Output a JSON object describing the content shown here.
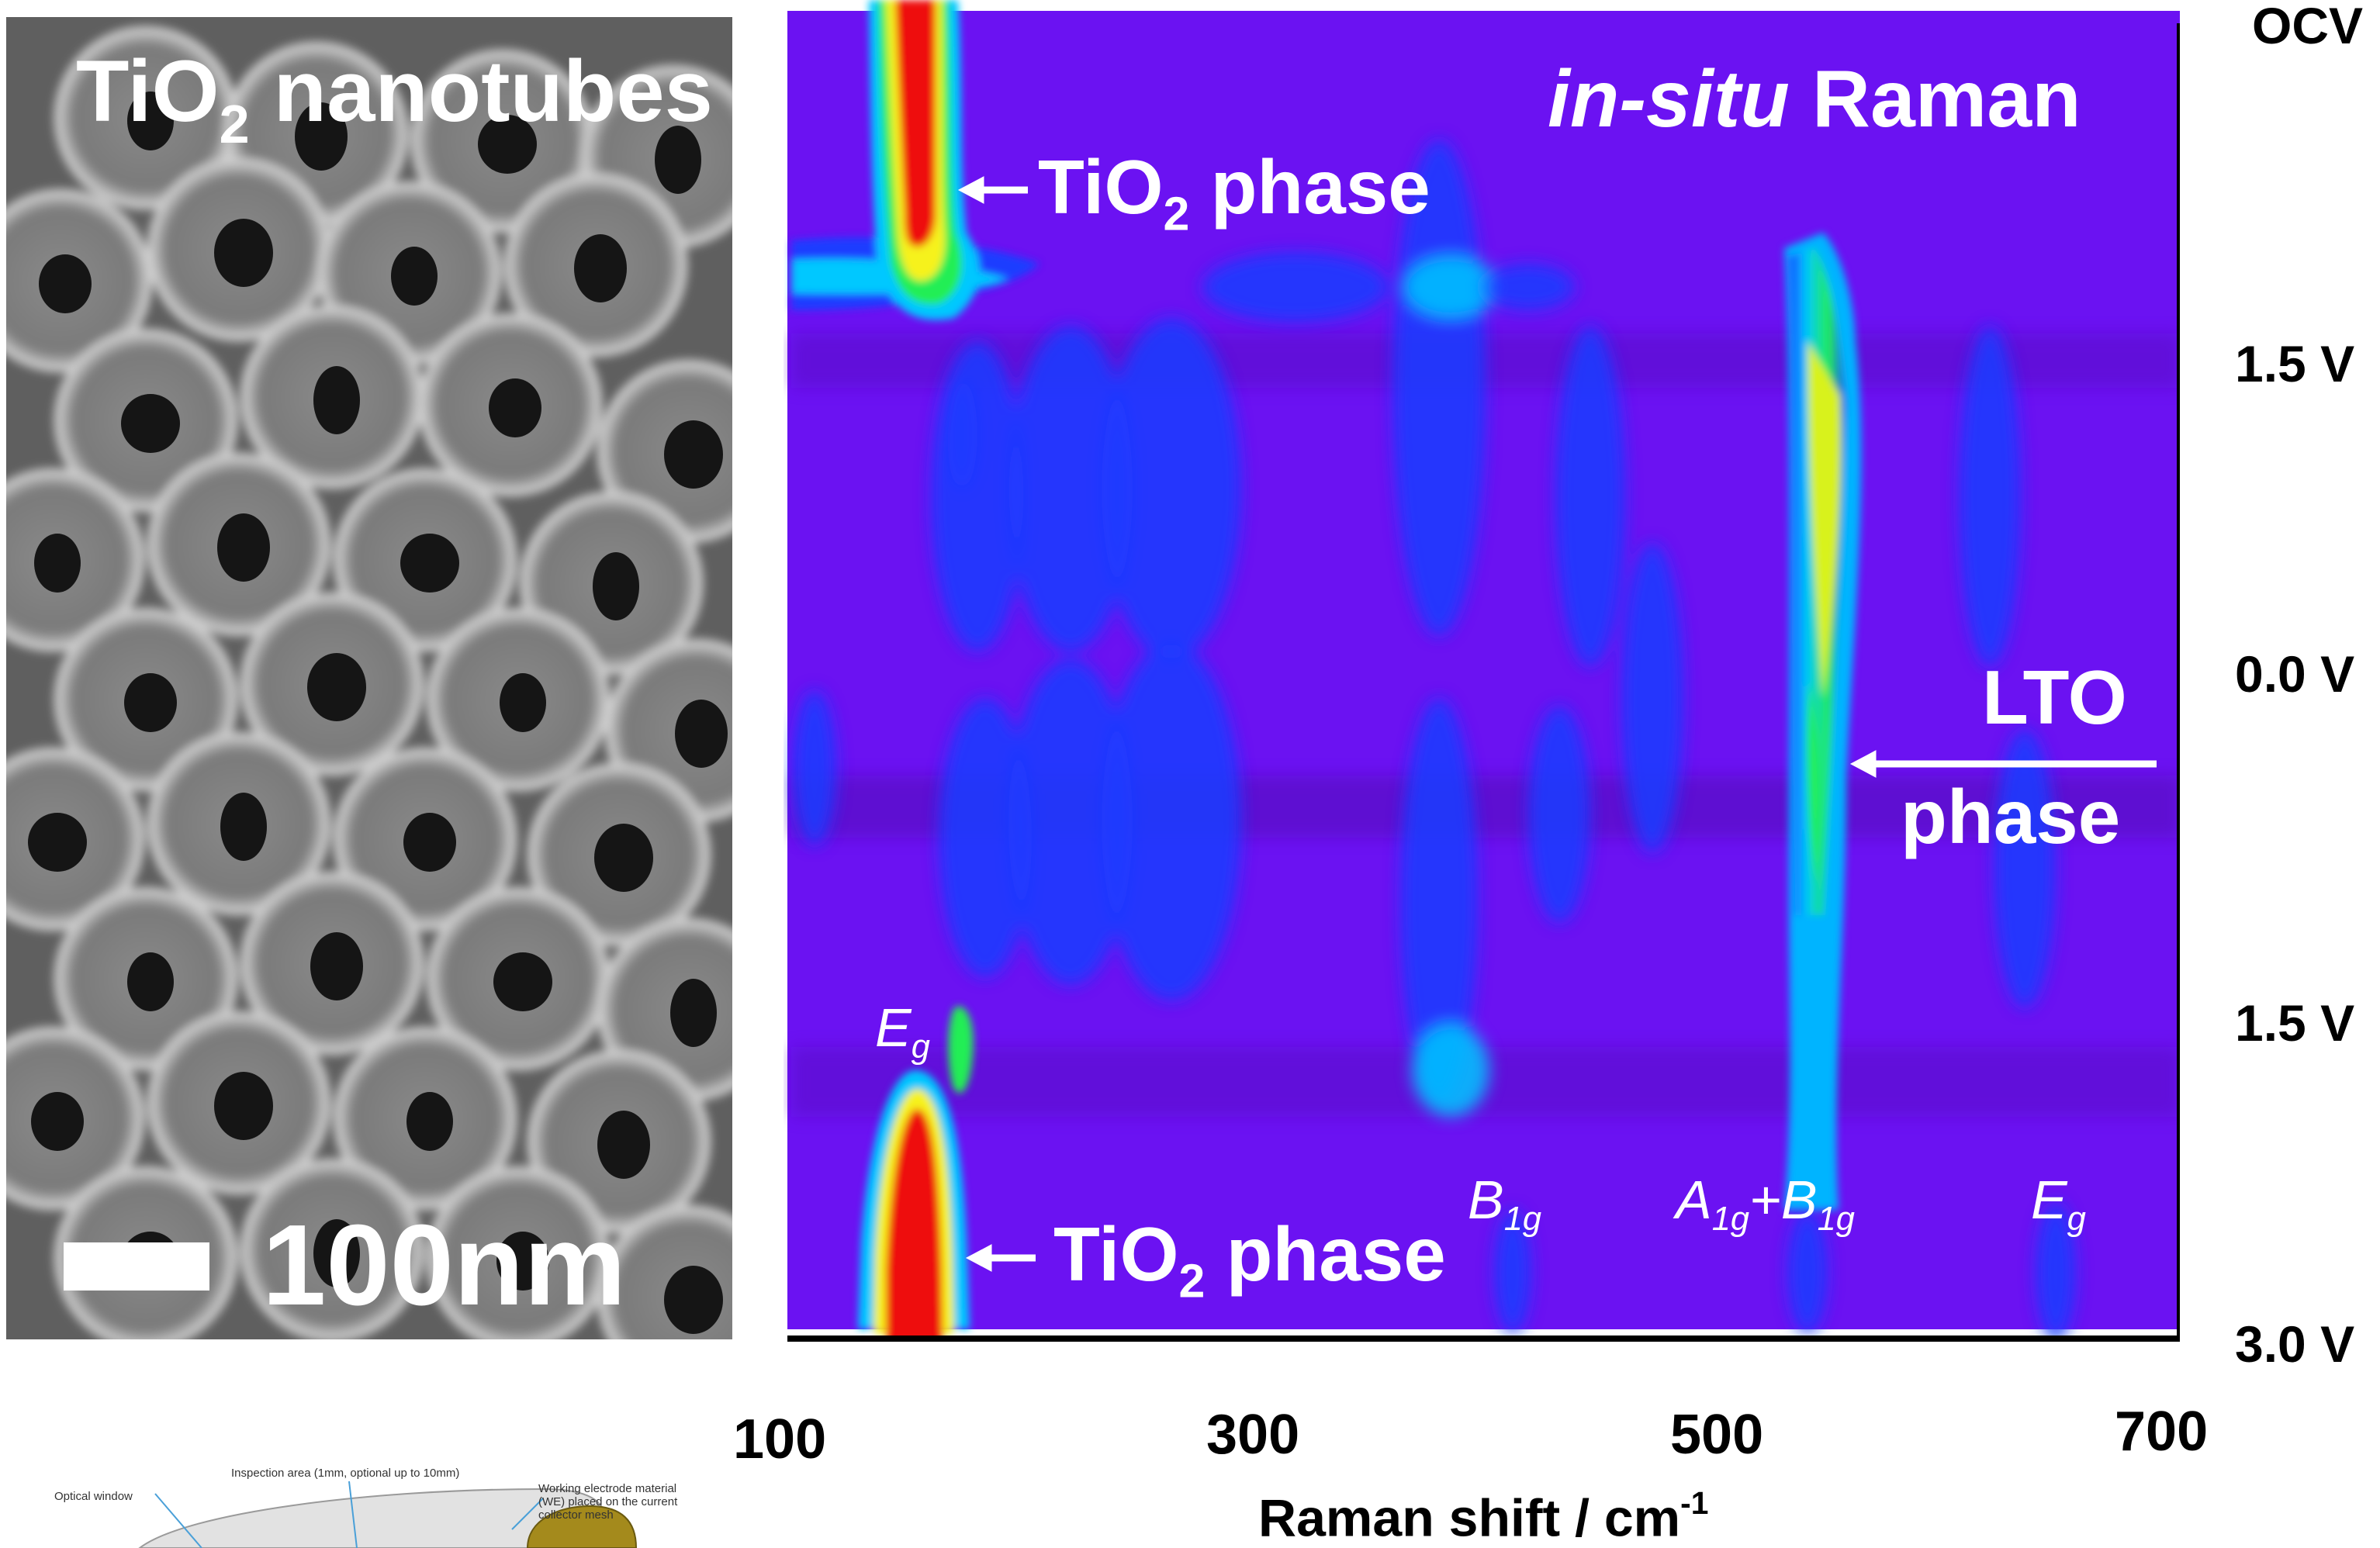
{
  "sem_panel": {
    "title_main": "TiO",
    "title_sub": "2",
    "title_rest": " nanotubes",
    "scale_label": "100nm"
  },
  "map": {
    "title_italic": "in-situ",
    "title_rest": " Raman",
    "annot_top_prefix": "TiO",
    "annot_top_sub": "2",
    "annot_top_suffix": " phase",
    "annot_bottom_prefix": "TiO",
    "annot_bottom_sub": "2",
    "annot_bottom_suffix": " phase",
    "lto_line1": "LTO",
    "lto_line2": "phase",
    "peak_eg_top": {
      "main": "E",
      "sub": "g"
    },
    "peak_b1g": {
      "main": "B",
      "sub": "1g"
    },
    "peak_a1g_b1g": {
      "main1": "A",
      "sub1": "1g",
      "plus": "+",
      "main2": "B",
      "sub2": "1g"
    },
    "peak_eg_right": {
      "main": "E",
      "sub": "g"
    },
    "colors": {
      "background": "#6b12f2",
      "dark_band": "#5a10c8",
      "blue": "#1a3cff",
      "cyan": "#00c8ff",
      "green": "#22ee55",
      "yellow": "#f6f21c",
      "red": "#ee1111"
    }
  },
  "x_axis": {
    "label_prefix": "Raman shift / cm",
    "label_sup": "-1",
    "ticks": [
      "100",
      "300",
      "500",
      "700"
    ]
  },
  "y_axis": {
    "ticks": [
      "OCV",
      "1.5 V",
      "0.0 V",
      "1.5 V",
      "3.0 V"
    ]
  },
  "schematic": {
    "label_optical": "Optical window",
    "label_inspection": "Inspection area (1mm, optional up to 10mm)",
    "label_we_1": "Working electrode material",
    "label_we_2": "(WE) placed on the current",
    "label_we_3": "collector mesh"
  },
  "chart_data": {
    "type": "heatmap",
    "xlabel": "Raman shift / cm-1",
    "x_ticks": [
      100,
      300,
      500,
      700
    ],
    "y_ticks": [
      "OCV",
      "1.5 V",
      "0.0 V",
      "1.5 V",
      "3.0 V"
    ],
    "peaks": [
      {
        "label": "Eg",
        "raman_shift": 145,
        "phase": "TiO2"
      },
      {
        "label": "B1g",
        "raman_shift": 400,
        "phase": "TiO2"
      },
      {
        "label": "A1g+B1g",
        "raman_shift": 520,
        "phase": "TiO2"
      },
      {
        "label": "Eg",
        "raman_shift": 640,
        "phase": "TiO2"
      }
    ],
    "annotations": [
      "TiO2 phase",
      "TiO2 phase",
      "LTO phase",
      "in-situ Raman"
    ]
  }
}
